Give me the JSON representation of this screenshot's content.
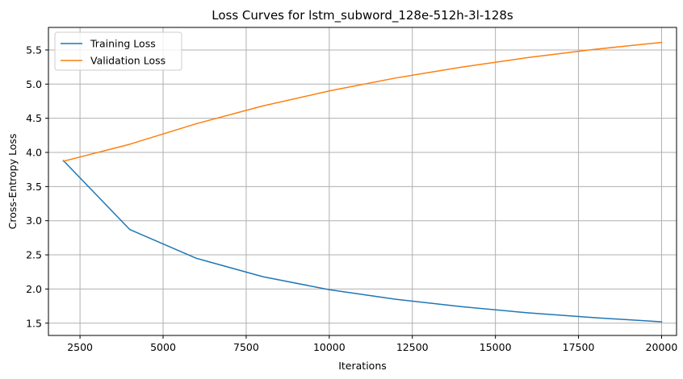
{
  "chart_data": {
    "type": "line",
    "title": "Loss Curves for lstm_subword_128e-512h-3l-128s",
    "xlabel": "Iterations",
    "ylabel": "Cross-Entropy Loss",
    "xlim": [
      1550,
      20450
    ],
    "ylim": [
      1.32,
      5.83
    ],
    "xticks": [
      2500,
      5000,
      7500,
      10000,
      12500,
      15000,
      17500,
      20000
    ],
    "yticks": [
      1.5,
      2.0,
      2.5,
      3.0,
      3.5,
      4.0,
      4.5,
      5.0,
      5.5
    ],
    "grid": true,
    "legend_position": "top-left",
    "x": [
      2000,
      4000,
      6000,
      8000,
      10000,
      12000,
      14000,
      16000,
      18000,
      20000
    ],
    "series": [
      {
        "name": "Training Loss",
        "color": "#1f77b4",
        "values": [
          3.88,
          2.87,
          2.45,
          2.18,
          1.99,
          1.85,
          1.74,
          1.65,
          1.58,
          1.52
        ]
      },
      {
        "name": "Validation Loss",
        "color": "#ff7f0e",
        "values": [
          3.87,
          4.12,
          4.42,
          4.68,
          4.9,
          5.09,
          5.25,
          5.39,
          5.51,
          5.61
        ]
      }
    ]
  }
}
